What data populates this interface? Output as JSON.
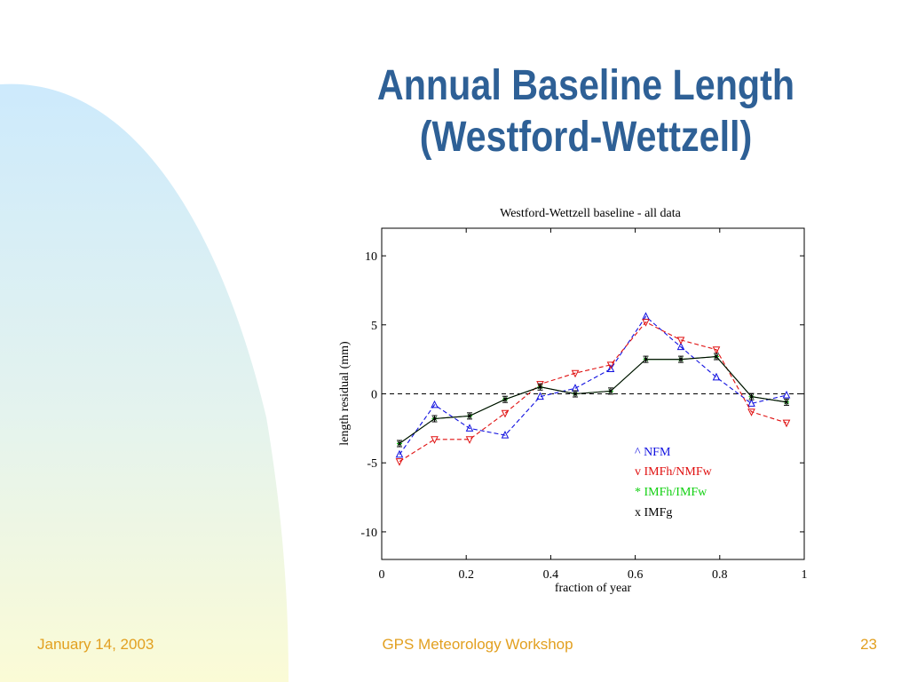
{
  "slide": {
    "title_line1": "Annual Baseline Length",
    "title_line2": "(Westford-Wettzell)",
    "footer_date": "January 14, 2003",
    "footer_event": "GPS Meteorology Workshop",
    "footer_page": "23",
    "accent_color": "#2e6096",
    "footer_color": "#e2a020"
  },
  "chart_data": {
    "type": "line",
    "title": "Westford-Wettzell baseline - all data",
    "xlabel": "fraction of year",
    "ylabel": "length residual (mm)",
    "xlim": [
      0,
      1
    ],
    "ylim": [
      -12,
      12
    ],
    "xticks": [
      0,
      0.2,
      0.4,
      0.6,
      0.8,
      1
    ],
    "xtick_labels": [
      "0",
      "0.2",
      "0.4",
      "0.6",
      "0.8",
      "1"
    ],
    "yticks": [
      -10,
      -5,
      0,
      5,
      10
    ],
    "ytick_labels": [
      "-10",
      "-5",
      "0",
      "5",
      "10"
    ],
    "zero_line": true,
    "grid": false,
    "legend_position": "lower-right",
    "x": [
      0.042,
      0.125,
      0.208,
      0.292,
      0.375,
      0.458,
      0.542,
      0.625,
      0.708,
      0.792,
      0.875,
      0.958
    ],
    "series": [
      {
        "name": "^ NFM",
        "color": "#1010e0",
        "marker": "triangle-up",
        "style": "dashed",
        "values": [
          -4.4,
          -0.8,
          -2.5,
          -3.0,
          -0.2,
          0.4,
          1.8,
          5.6,
          3.4,
          1.2,
          -0.7,
          -0.1
        ]
      },
      {
        "name": "v IMFh/NMFw",
        "color": "#e01010",
        "marker": "triangle-down",
        "style": "dashed",
        "values": [
          -4.9,
          -3.3,
          -3.3,
          -1.4,
          0.7,
          1.5,
          2.1,
          5.2,
          3.9,
          3.2,
          -1.3,
          -2.1
        ]
      },
      {
        "name": "* IMFh/IMFw",
        "color": "#10d010",
        "marker": "star",
        "style": "solid",
        "values": [
          -3.6,
          -1.8,
          -1.6,
          -0.4,
          0.5,
          0.0,
          0.2,
          2.5,
          2.5,
          2.7,
          -0.2,
          -0.6
        ]
      },
      {
        "name": "x IMFg",
        "color": "#000000",
        "marker": "x-errorbar",
        "style": "solid",
        "values": [
          -3.6,
          -1.8,
          -1.6,
          -0.4,
          0.5,
          0.0,
          0.2,
          2.5,
          2.5,
          2.7,
          -0.2,
          -0.6
        ]
      }
    ]
  }
}
